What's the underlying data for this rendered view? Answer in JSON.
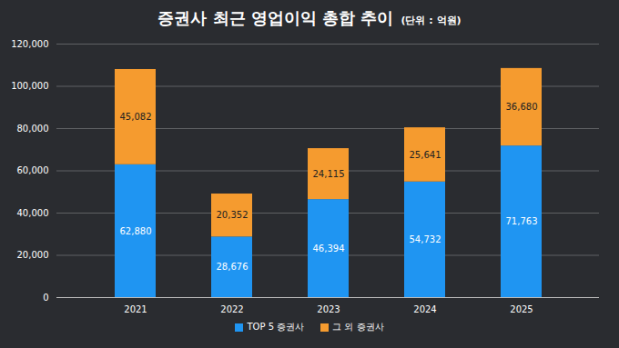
{
  "chart_data": {
    "type": "bar",
    "title": "증권사 최근 영업이익 총합 추이",
    "subtitle": "(단위 : 억원)",
    "categories": [
      "2021",
      "2022",
      "2023",
      "2024",
      "2025"
    ],
    "stacked": true,
    "data_labels": true,
    "grid": true,
    "legend": "bottom",
    "ylim": [
      0,
      120000
    ],
    "yticks": [
      0,
      {
        "value": 20000,
        "label": "20,000"
      },
      {
        "value": 40000,
        "label": "40,000"
      },
      {
        "value": 60000,
        "label": "60,000"
      },
      {
        "value": 80000,
        "label": "80,000"
      },
      {
        "value": 100000,
        "label": "100,000"
      },
      {
        "value": 120000,
        "label": "120,000"
      }
    ],
    "series": [
      {
        "name": "TOP 5 증권사",
        "color": "#1f95f2",
        "values": [
          62880,
          28676,
          46394,
          54732,
          71763
        ],
        "value_labels": [
          "62,880",
          "28,676",
          "46,394",
          "54,732",
          "71,763"
        ]
      },
      {
        "name": "그 외 증권사",
        "color": "#f59b2f",
        "values": [
          45082,
          20352,
          24115,
          25641,
          36680
        ],
        "value_labels": [
          "45,082",
          "20,352",
          "24,115",
          "25,641",
          "36,680"
        ]
      }
    ]
  }
}
